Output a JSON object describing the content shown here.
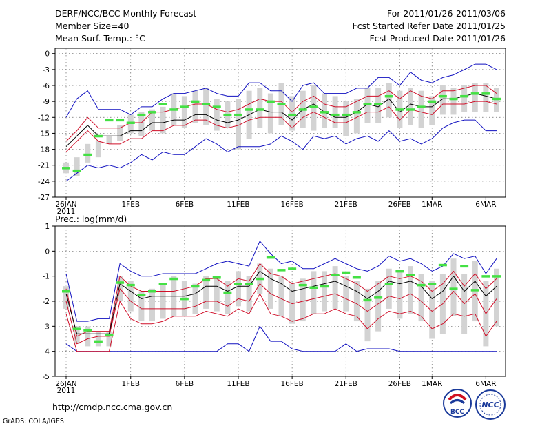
{
  "header": {
    "title": "DERF/NCC/BCC Monthly Forecast",
    "member_size": "Member Size=40",
    "variable": "Mean Surf. Temp.: °C",
    "for_range": "For 2011/01/26-2011/03/06",
    "started_refer": "Fcst Started Refer Date 2011/01/25",
    "produced": "Fcst Produced Date 2011/01/26"
  },
  "footer": {
    "url": "http://cmdp.ncc.cma.gov.cn",
    "grads": "GrADS: COLA/IGES",
    "logo_bcc": "BCC",
    "logo_ncc": "NCC"
  },
  "colors": {
    "box": "#d3d3d3",
    "bound": "#1010c0",
    "spread": "#d0102a",
    "mean": "#000000",
    "marker": "#44e044"
  },
  "chart_data": [
    {
      "type": "box",
      "title": "Mean Surf. Temp.: °C",
      "ylabel": "°C",
      "ylim": [
        -27,
        1
      ],
      "yticks": [
        0,
        -3,
        -6,
        -9,
        -12,
        -15,
        -18,
        -21,
        -24,
        -27
      ],
      "x_days": 41,
      "xticks": [
        {
          "day": 0,
          "label": "26JAN",
          "label2": "2011"
        },
        {
          "day": 6,
          "label": "1FEB"
        },
        {
          "day": 11,
          "label": "6FEB"
        },
        {
          "day": 16,
          "label": "11FEB"
        },
        {
          "day": 21,
          "label": "16FEB"
        },
        {
          "day": 26,
          "label": "21FEB"
        },
        {
          "day": 31,
          "label": "26FEB"
        },
        {
          "day": 34,
          "label": "1MAR"
        },
        {
          "day": 39,
          "label": "6MAR"
        }
      ],
      "series": {
        "max": [
          -12,
          -8.5,
          -7,
          -10.5,
          -10.5,
          -10.5,
          -11.5,
          -10,
          -10,
          -8.5,
          -7.5,
          -7.5,
          -7,
          -6.5,
          -7.5,
          -8,
          -8,
          -5.5,
          -5.5,
          -7,
          -7,
          -9,
          -6,
          -5.5,
          -7.5,
          -7.5,
          -7.5,
          -6.5,
          -6.5,
          -4.5,
          -4.5,
          -6,
          -3.5,
          -5,
          -5.5,
          -4.5,
          -4,
          -3,
          -2,
          -2,
          -3
        ],
        "upper": [
          -16.5,
          -14.5,
          -12,
          -14,
          -14,
          -14,
          -13,
          -13,
          -11,
          -11,
          -10.5,
          -10,
          -9.5,
          -9.5,
          -10.5,
          -11,
          -10.5,
          -9.5,
          -8.5,
          -9,
          -9,
          -11,
          -9,
          -8,
          -9.5,
          -10,
          -10,
          -9,
          -8,
          -8,
          -7,
          -8.5,
          -7,
          -8,
          -8.5,
          -7,
          -7,
          -6.5,
          -6,
          -6,
          -7.5
        ],
        "mean": [
          -17.5,
          -15.5,
          -13.5,
          -15.5,
          -15.5,
          -15.5,
          -14.5,
          -14.5,
          -13,
          -13,
          -12.5,
          -12.5,
          -11.5,
          -11.5,
          -12.5,
          -13,
          -12.5,
          -11.5,
          -10.5,
          -11,
          -11,
          -12.5,
          -10.5,
          -9.5,
          -11,
          -12,
          -12,
          -11,
          -9.5,
          -10,
          -8.5,
          -11,
          -9.5,
          -10,
          -10,
          -8.5,
          -8.5,
          -8,
          -7.5,
          -8,
          -8.5
        ],
        "lower": [
          -18.5,
          -16.5,
          -14.5,
          -16.5,
          -17,
          -17,
          -16,
          -16,
          -14.5,
          -14.5,
          -13.5,
          -13.5,
          -12.5,
          -12.5,
          -13.5,
          -14,
          -13.5,
          -12.5,
          -12,
          -12,
          -12,
          -14,
          -12,
          -11,
          -12,
          -13,
          -13,
          -12,
          -11,
          -11,
          -10,
          -12.5,
          -10.5,
          -11,
          -11.5,
          -9.5,
          -9.5,
          -9.5,
          -9,
          -9,
          -9.5
        ],
        "min": [
          -24,
          -22.5,
          -21,
          -21.5,
          -21,
          -21.5,
          -20.5,
          -19,
          -20,
          -18.5,
          -19,
          -19,
          -17.5,
          -16,
          -17,
          -18.5,
          -17.5,
          -17.5,
          -17.5,
          -17,
          -15.5,
          -16.5,
          -18,
          -15.5,
          -16,
          -15.5,
          -17,
          -16,
          -15.5,
          -16.5,
          -14.5,
          -16.5,
          -16,
          -17,
          -16,
          -14,
          -13,
          -12.5,
          -12.5,
          -14.5,
          -14.5
        ],
        "box_hi": [
          -20.5,
          -19.5,
          -17,
          -16.5,
          -15.5,
          -13.5,
          -11.5,
          -11,
          -10.5,
          -10,
          -7.5,
          -8,
          -7,
          -6.5,
          -8.5,
          -9,
          -8.5,
          -7,
          -6.5,
          -7.5,
          -5.5,
          -8,
          -7,
          -6,
          -7.5,
          -8,
          -9,
          -8.5,
          -6.5,
          -6.5,
          -5.5,
          -7,
          -6.5,
          -7,
          -8,
          -6,
          -6.5,
          -6,
          -5.5,
          -5.5,
          -6.5
        ],
        "box_lo": [
          -22.5,
          -23,
          -20.5,
          -19.5,
          -17,
          -16.5,
          -15,
          -15.5,
          -14.5,
          -15,
          -13.5,
          -14,
          -13,
          -13.5,
          -14.5,
          -14,
          -18,
          -16,
          -14,
          -15,
          -13.5,
          -14.5,
          -14,
          -14.5,
          -14,
          -14,
          -15.5,
          -15,
          -13,
          -13,
          -12,
          -14,
          -13.5,
          -14,
          -13.5,
          -11.5,
          -11.5,
          -11,
          -11,
          -11,
          -11
        ],
        "marker": [
          -21.5,
          -22,
          -19,
          -15.5,
          -12.5,
          -12.5,
          -13,
          -11.5,
          -11,
          -9.5,
          -10.5,
          -10,
          -9,
          -9.5,
          -10,
          -11.5,
          -11.5,
          -10.5,
          -10.5,
          -9,
          -9.5,
          -11.5,
          -10.5,
          -10,
          -11,
          -11.5,
          -11.5,
          -11,
          -9.5,
          -9.5,
          -8,
          -10.5,
          -10.5,
          -10,
          -9,
          -8,
          -8.5,
          -8,
          -7.5,
          -7.5,
          -8.5
        ]
      }
    },
    {
      "type": "box",
      "title": "Prec.: log(mm/d)",
      "ylabel": "log(mm/d)",
      "ylim": [
        -5,
        1
      ],
      "yticks": [
        1,
        0,
        -1,
        -2,
        -3,
        -4,
        -5
      ],
      "x_days": 41,
      "xticks": [
        {
          "day": 0,
          "label": "26JAN",
          "label2": "2011"
        },
        {
          "day": 6,
          "label": "1FEB"
        },
        {
          "day": 11,
          "label": "6FEB"
        },
        {
          "day": 16,
          "label": "11FEB"
        },
        {
          "day": 21,
          "label": "16FEB"
        },
        {
          "day": 26,
          "label": "21FEB"
        },
        {
          "day": 31,
          "label": "26FEB"
        },
        {
          "day": 34,
          "label": "1MAR"
        },
        {
          "day": 39,
          "label": "6MAR"
        }
      ],
      "series": {
        "max": [
          -0.9,
          -2.8,
          -2.8,
          -2.7,
          -2.7,
          -0.5,
          -0.8,
          -1.0,
          -1.0,
          -0.9,
          -0.9,
          -0.9,
          -0.9,
          -0.7,
          -0.5,
          -0.4,
          -0.5,
          -0.6,
          0.4,
          -0.1,
          -0.5,
          -0.4,
          -0.7,
          -0.7,
          -0.5,
          -0.3,
          -0.5,
          -0.7,
          -0.8,
          -0.6,
          -0.2,
          -0.4,
          -0.3,
          -0.5,
          -0.8,
          -0.6,
          -0.1,
          -0.3,
          -0.2,
          -0.9,
          -0.3
        ],
        "upper": [
          -1.5,
          -3.4,
          -3.2,
          -3.2,
          -3.2,
          -1.0,
          -1.4,
          -1.6,
          -1.6,
          -1.6,
          -1.6,
          -1.5,
          -1.4,
          -1.1,
          -1.1,
          -1.4,
          -1.1,
          -1.2,
          -0.5,
          -0.9,
          -1.0,
          -1.3,
          -1.2,
          -1.1,
          -1.0,
          -0.9,
          -1.1,
          -1.3,
          -1.6,
          -1.3,
          -1.0,
          -1.1,
          -1.0,
          -1.2,
          -1.6,
          -1.3,
          -0.8,
          -1.4,
          -0.9,
          -1.5,
          -1.1
        ],
        "mean": [
          -1.7,
          -3.3,
          -3.3,
          -3.3,
          -3.3,
          -1.3,
          -1.6,
          -1.9,
          -1.8,
          -1.8,
          -1.8,
          -1.8,
          -1.7,
          -1.4,
          -1.4,
          -1.6,
          -1.4,
          -1.4,
          -0.8,
          -1.1,
          -1.3,
          -1.6,
          -1.5,
          -1.4,
          -1.3,
          -1.2,
          -1.4,
          -1.6,
          -1.9,
          -1.6,
          -1.2,
          -1.3,
          -1.2,
          -1.4,
          -1.9,
          -1.6,
          -1.0,
          -1.6,
          -1.2,
          -1.8,
          -1.4
        ],
        "lower": [
          -2.0,
          -3.7,
          -3.5,
          -3.4,
          -3.4,
          -1.5,
          -2.0,
          -2.3,
          -2.3,
          -2.3,
          -2.3,
          -2.3,
          -2.2,
          -2.0,
          -2.0,
          -2.2,
          -1.9,
          -2.0,
          -1.3,
          -1.7,
          -1.9,
          -2.1,
          -2.0,
          -1.9,
          -1.8,
          -1.7,
          -1.9,
          -2.1,
          -2.4,
          -2.1,
          -1.8,
          -1.9,
          -1.7,
          -2.0,
          -2.4,
          -2.1,
          -1.6,
          -2.1,
          -1.7,
          -2.5,
          -1.9
        ],
        "lowest": [
          -2.5,
          -4.0,
          -4.0,
          -4.0,
          -4.0,
          -2.0,
          -2.7,
          -2.9,
          -2.9,
          -2.8,
          -2.6,
          -2.6,
          -2.6,
          -2.4,
          -2.5,
          -2.6,
          -2.3,
          -2.5,
          -1.7,
          -2.5,
          -2.6,
          -2.8,
          -2.7,
          -2.5,
          -2.5,
          -2.3,
          -2.5,
          -2.6,
          -3.1,
          -2.7,
          -2.4,
          -2.5,
          -2.4,
          -2.6,
          -3.1,
          -2.9,
          -2.5,
          -2.6,
          -2.5,
          -3.4,
          -2.8
        ],
        "min": [
          -3.7,
          -4.0,
          -4.0,
          -4.0,
          -4.0,
          -4.0,
          -4.0,
          -4.0,
          -4.0,
          -4.0,
          -4.0,
          -4.0,
          -4.0,
          -4.0,
          -4.0,
          -3.7,
          -3.7,
          -4.0,
          -3.0,
          -3.6,
          -3.6,
          -3.9,
          -4.0,
          -4.0,
          -4.0,
          -4.0,
          -3.7,
          -4.0,
          -3.9,
          -3.9,
          -3.9,
          -4.0,
          -4.0,
          -4.0,
          -4.0,
          -4.0,
          -4.0,
          -4.0,
          -4.0,
          -4.0,
          -4.0
        ],
        "box_hi": [
          -1.4,
          -3.0,
          -3.0,
          -3.2,
          -3.2,
          -1.0,
          -1.2,
          -1.6,
          -1.5,
          -1.3,
          -1.0,
          -1.2,
          -1.3,
          -1.0,
          -1.0,
          -1.2,
          -0.8,
          -1.0,
          -0.5,
          -0.7,
          -1.0,
          -1.3,
          -1.1,
          -0.8,
          -0.8,
          -0.6,
          -1.0,
          -1.2,
          -1.5,
          -1.2,
          -0.7,
          -0.8,
          -0.6,
          -0.9,
          -1.2,
          -0.9,
          -0.3,
          -0.9,
          -0.4,
          -1.2,
          -0.7
        ],
        "box_lo": [
          -2.3,
          -3.7,
          -3.8,
          -3.8,
          -3.8,
          -2.0,
          -2.4,
          -2.8,
          -2.8,
          -2.7,
          -2.6,
          -2.6,
          -2.5,
          -2.3,
          -2.4,
          -2.5,
          -2.2,
          -2.4,
          -1.7,
          -2.3,
          -2.6,
          -2.9,
          -2.8,
          -2.5,
          -2.4,
          -2.3,
          -2.4,
          -2.8,
          -3.6,
          -3.2,
          -2.3,
          -2.7,
          -2.5,
          -2.8,
          -3.5,
          -3.3,
          -2.6,
          -3.3,
          -2.8,
          -3.8,
          -3.0
        ],
        "marker": [
          -1.6,
          -3.1,
          -3.15,
          -3.6,
          -3.35,
          -1.25,
          -1.35,
          -1.75,
          -1.6,
          -1.3,
          -1.1,
          -1.9,
          -1.4,
          -1.15,
          -1.05,
          -1.65,
          -1.3,
          -1.3,
          -1.1,
          -0.25,
          -0.75,
          -0.7,
          -1.35,
          -1.45,
          -1.4,
          -0.95,
          -0.85,
          -1.05,
          -1.95,
          -1.85,
          -1.3,
          -0.8,
          -0.95,
          -1.35,
          -1.3,
          -0.55,
          -1.5,
          -0.6,
          -1.55,
          -1.0,
          -1.0
        ]
      }
    }
  ]
}
